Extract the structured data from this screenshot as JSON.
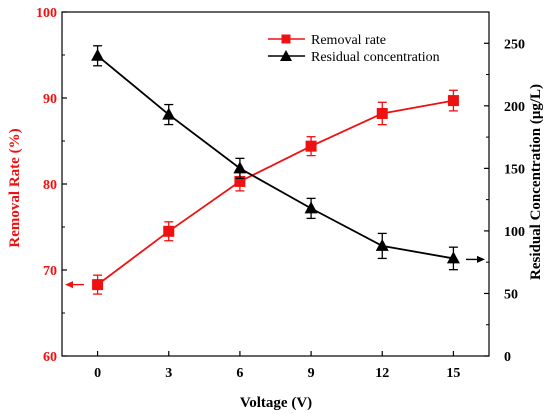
{
  "chart_data": {
    "type": "line",
    "title": "",
    "xlabel": "Voltage (V)",
    "ylabel_left": "Removal Rate (%)",
    "ylabel_right": "Residual Concentration (μg/L)",
    "x": [
      0,
      3,
      6,
      9,
      12,
      15
    ],
    "xticks": [
      "0",
      "3",
      "6",
      "9",
      "12",
      "15"
    ],
    "xlim": [
      -1.5,
      16.5
    ],
    "ylim_left": [
      60,
      100
    ],
    "ylim_right": [
      0,
      275
    ],
    "yticks_left": [
      "60",
      "70",
      "80",
      "90",
      "100"
    ],
    "yticks_right": [
      "0",
      "50",
      "100",
      "150",
      "200",
      "250"
    ],
    "grid": false,
    "legend_placement": "top-right",
    "series": [
      {
        "name": "Removal rate",
        "axis": "left",
        "color": "#ee1111",
        "marker": "square",
        "values": [
          68.3,
          74.5,
          80.3,
          84.4,
          88.2,
          89.7
        ],
        "errors": [
          1.1,
          1.1,
          1.1,
          1.1,
          1.3,
          1.2
        ]
      },
      {
        "name": "Residual concentration",
        "axis": "right",
        "color": "#000000",
        "marker": "triangle",
        "values": [
          240,
          193,
          150,
          118,
          88,
          78
        ],
        "errors": [
          8,
          8,
          8,
          8,
          10,
          9
        ]
      }
    ]
  }
}
